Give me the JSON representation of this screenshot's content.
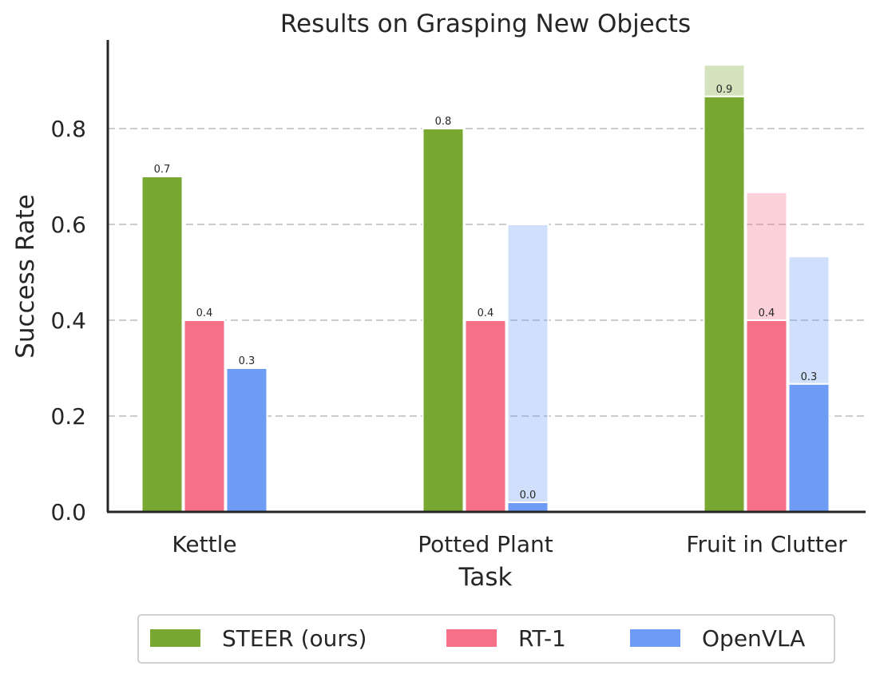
{
  "chart_data": {
    "type": "bar",
    "title": "Results on Grasping New Objects",
    "xlabel": "Task",
    "ylabel": "Success Rate",
    "categories": [
      "Kettle",
      "Potted Plant",
      "Fruit in Clutter"
    ],
    "ylim": [
      0,
      0.98
    ],
    "yticks": [
      "0.0",
      "0.2",
      "0.4",
      "0.6",
      "0.8"
    ],
    "ytick_values": [
      0,
      0.2,
      0.4,
      0.6,
      0.8
    ],
    "grid": "horizontal dashed",
    "legend_position": "bottom-center",
    "series": [
      {
        "name": "STEER (ours)",
        "color": "#78a832",
        "values": [
          0.7,
          0.8,
          0.867
        ],
        "upper_values": [
          0.7,
          0.8,
          0.933
        ],
        "labels": [
          "0.7",
          "0.8",
          "0.9"
        ]
      },
      {
        "name": "RT-1",
        "color": "#f67188",
        "values": [
          0.4,
          0.4,
          0.4
        ],
        "upper_values": [
          0.4,
          0.4,
          0.667
        ],
        "labels": [
          "0.4",
          "0.4",
          "0.4"
        ]
      },
      {
        "name": "OpenVLA",
        "color": "#6e9bf4",
        "values": [
          0.3,
          0.02,
          0.267
        ],
        "upper_values": [
          0.3,
          0.6,
          0.533
        ],
        "labels": [
          "0.3",
          "0.0",
          "0.3"
        ]
      }
    ]
  }
}
